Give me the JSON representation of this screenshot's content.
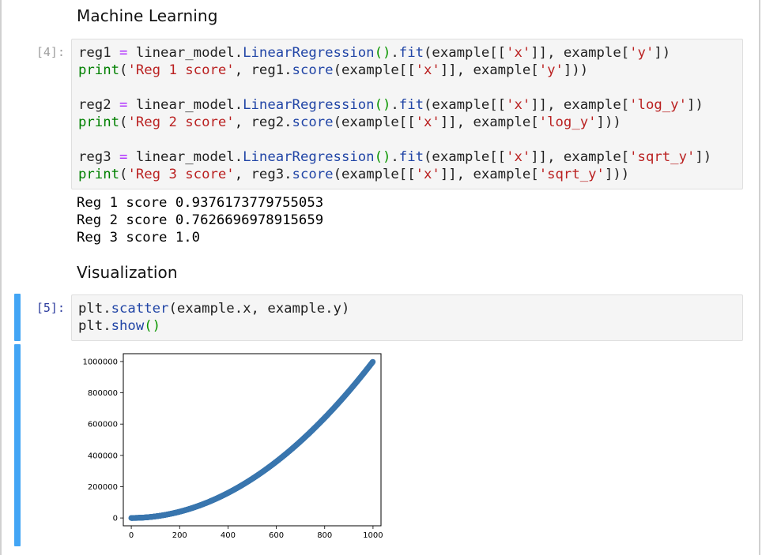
{
  "headings": {
    "ml": "Machine Learning",
    "viz": "Visualization"
  },
  "cells": [
    {
      "prompt": "[4]:",
      "code_lines": [
        "reg1 = linear_model.LinearRegression().fit(example[['x']], example['y'])",
        "print('Reg 1 score', reg1.score(example[['x']], example['y']))",
        "",
        "reg2 = linear_model.LinearRegression().fit(example[['x']], example['log_y'])",
        "print('Reg 2 score', reg2.score(example[['x']], example['log_y']))",
        "",
        "reg3 = linear_model.LinearRegression().fit(example[['x']], example['sqrt_y'])",
        "print('Reg 3 score', reg3.score(example[['x']], example['sqrt_y']))"
      ],
      "output_lines": [
        "Reg 1 score 0.9376173779755053",
        "Reg 2 score 0.7626696978915659",
        "Reg 3 score 1.0"
      ]
    },
    {
      "prompt": "[5]:",
      "code_lines": [
        "plt.scatter(example.x, example.y)",
        "plt.show()"
      ]
    }
  ],
  "colors": {
    "selection_bar": "#42a5f5",
    "marker": "#3a76ae",
    "prompt_active": "#303f9f"
  },
  "chart_data": {
    "type": "scatter",
    "title": "",
    "xlabel": "",
    "ylabel": "",
    "xlim": [
      -33,
      1033
    ],
    "ylim": [
      -50000,
      1050000
    ],
    "xticks": [
      0,
      200,
      400,
      600,
      800,
      1000
    ],
    "yticks": [
      0,
      200000,
      400000,
      600000,
      800000,
      1000000
    ],
    "xtick_labels": [
      "0",
      "200",
      "400",
      "600",
      "800",
      "1000"
    ],
    "ytick_labels": [
      "0",
      "200000",
      "400000",
      "600000",
      "800000",
      "1000000"
    ],
    "series": [
      {
        "function": "y = x^2",
        "x_range": [
          0,
          999
        ],
        "x_step": 1
      }
    ],
    "grid": false,
    "legend": "none"
  }
}
